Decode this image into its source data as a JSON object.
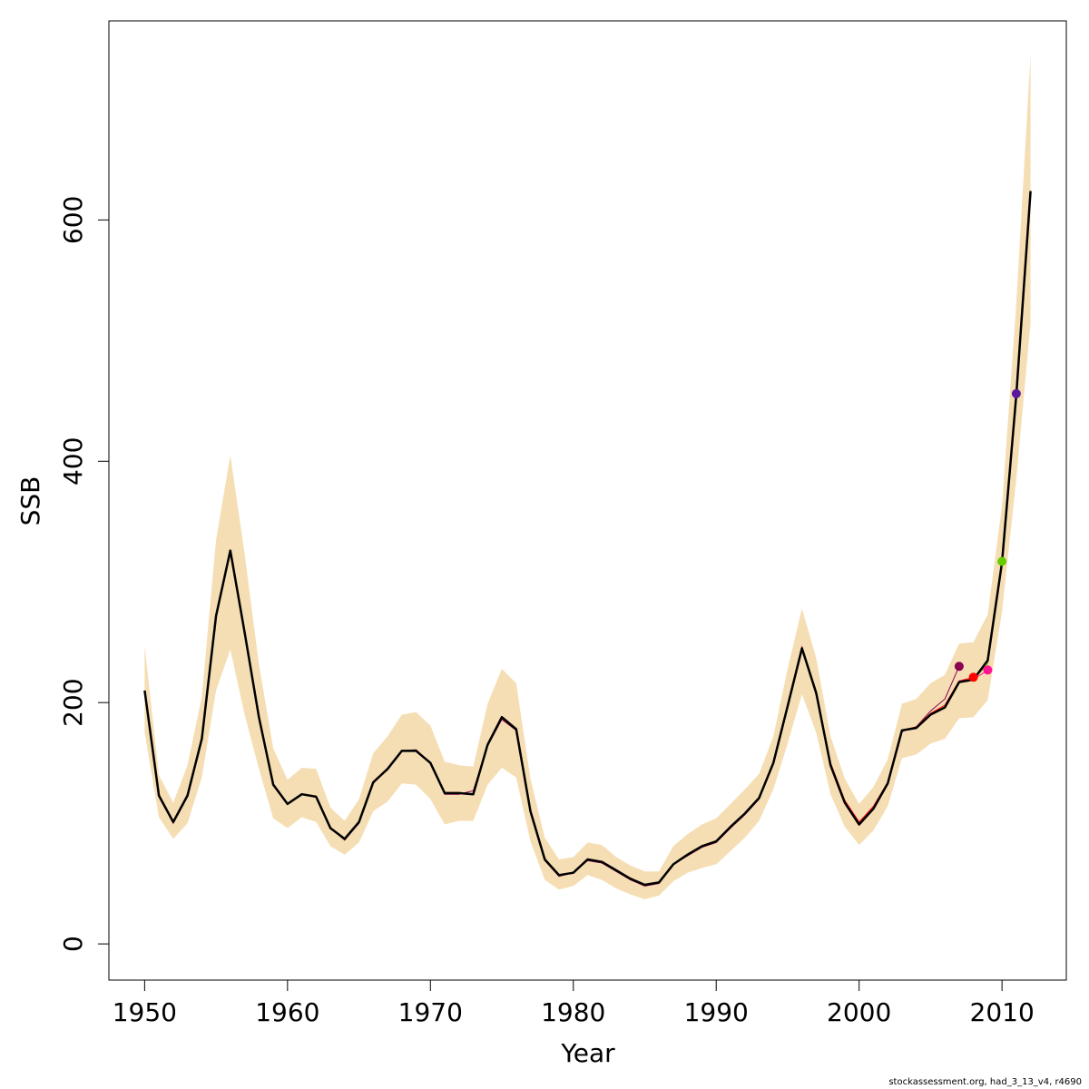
{
  "chart_data": {
    "type": "line",
    "xlabel": "Year",
    "ylabel": "SSB",
    "xlim": [
      1947.5,
      2014.5
    ],
    "ylim": [
      -30,
      765
    ],
    "x_ticks": [
      1950,
      1960,
      1970,
      1980,
      1990,
      2000,
      2010
    ],
    "y_ticks": [
      0,
      200,
      400,
      600
    ],
    "grid": false,
    "colors": {
      "band": "#f5deb3",
      "main": "#000000",
      "retro": [
        "#8b0050",
        "#ff0000",
        "#ff1493",
        "#66cc00",
        "#5b1a9e"
      ]
    },
    "x": [
      1950,
      1951,
      1952,
      1953,
      1954,
      1955,
      1956,
      1957,
      1958,
      1959,
      1960,
      1961,
      1962,
      1963,
      1964,
      1965,
      1966,
      1967,
      1968,
      1969,
      1970,
      1971,
      1972,
      1973,
      1974,
      1975,
      1976,
      1977,
      1978,
      1979,
      1980,
      1981,
      1982,
      1983,
      1984,
      1985,
      1986,
      1987,
      1988,
      1989,
      1990,
      1991,
      1992,
      1993,
      1994,
      1995,
      1996,
      1997,
      1998,
      1999,
      2000,
      2001,
      2002,
      2003,
      2004,
      2005,
      2006,
      2007,
      2008,
      2009,
      2010,
      2011,
      2012
    ],
    "series": [
      {
        "role": "estimate",
        "values": [
          210,
          123,
          101,
          123,
          170,
          272,
          326,
          258,
          188,
          132,
          116,
          124,
          122,
          96,
          87,
          101,
          134,
          145,
          160,
          160,
          150,
          125,
          125,
          124,
          165,
          188,
          178,
          110,
          70,
          57,
          59,
          70,
          68,
          61,
          54,
          49,
          51,
          66,
          74,
          81,
          85,
          97,
          108,
          121,
          150,
          197,
          245,
          208,
          148,
          117,
          99,
          112,
          133,
          177,
          179,
          190,
          196,
          217,
          219,
          235,
          316,
          455,
          624
        ]
      },
      {
        "role": "lower",
        "values": [
          175,
          105,
          87,
          100,
          138,
          210,
          244,
          190,
          145,
          104,
          96,
          105,
          101,
          81,
          74,
          84,
          110,
          118,
          133,
          132,
          120,
          99,
          102,
          102,
          132,
          146,
          138,
          85,
          53,
          45,
          48,
          57,
          53,
          46,
          41,
          37,
          40,
          52,
          59,
          63,
          66,
          77,
          88,
          102,
          128,
          166,
          207,
          175,
          124,
          97,
          82,
          94,
          114,
          154,
          157,
          166,
          170,
          187,
          188,
          202,
          275,
          385,
          515
        ]
      },
      {
        "role": "upper",
        "values": [
          247,
          140,
          117,
          148,
          205,
          335,
          405,
          323,
          232,
          162,
          136,
          146,
          145,
          113,
          102,
          120,
          158,
          172,
          190,
          192,
          181,
          151,
          148,
          147,
          199,
          228,
          216,
          137,
          88,
          70,
          72,
          84,
          82,
          72,
          65,
          60,
          60,
          81,
          91,
          99,
          104,
          116,
          128,
          141,
          172,
          228,
          278,
          237,
          172,
          137,
          116,
          130,
          153,
          199,
          203,
          216,
          223,
          249,
          250,
          273,
          363,
          531,
          737
        ]
      },
      {
        "role": "retro-2007",
        "endpoint": 2007,
        "x": [
          1950,
          1951,
          1952,
          1953,
          1954,
          1955,
          1956,
          1957,
          1958,
          1959,
          1960,
          1961,
          1962,
          1963,
          1964,
          1965,
          1966,
          1967,
          1968,
          1969,
          1970,
          1971,
          1972,
          1973,
          1974,
          1975,
          1976,
          1977,
          1978,
          1979,
          1980,
          1981,
          1982,
          1983,
          1984,
          1985,
          1986,
          1987,
          1988,
          1989,
          1990,
          1991,
          1992,
          1993,
          1994,
          1995,
          1996,
          1997,
          1998,
          1999,
          2000,
          2001,
          2002,
          2003,
          2004,
          2005,
          2006,
          2007
        ],
        "values": [
          209,
          122,
          100,
          122,
          169,
          271,
          325,
          257,
          188,
          131,
          116,
          124,
          122,
          96,
          86,
          100,
          133,
          145,
          160,
          161,
          150,
          124,
          124,
          127,
          164,
          186,
          177,
          109,
          69,
          56,
          59,
          69,
          67,
          60,
          53,
          48,
          50,
          66,
          73,
          80,
          84,
          96,
          107,
          120,
          149,
          196,
          244,
          206,
          150,
          118,
          100,
          113,
          134,
          176,
          180,
          193,
          203,
          230
        ]
      },
      {
        "role": "retro-2008",
        "endpoint": 2008,
        "x": [
          1950,
          1951,
          1952,
          1953,
          1954,
          1955,
          1956,
          1957,
          1958,
          1959,
          1960,
          1961,
          1962,
          1963,
          1964,
          1965,
          1966,
          1967,
          1968,
          1969,
          1970,
          1971,
          1972,
          1973,
          1974,
          1975,
          1976,
          1977,
          1978,
          1979,
          1980,
          1981,
          1982,
          1983,
          1984,
          1985,
          1986,
          1987,
          1988,
          1989,
          1990,
          1991,
          1992,
          1993,
          1994,
          1995,
          1996,
          1997,
          1998,
          1999,
          2000,
          2001,
          2002,
          2003,
          2004,
          2005,
          2006,
          2007,
          2008
        ],
        "values": [
          210,
          123,
          101,
          123,
          170,
          272,
          326,
          258,
          188,
          132,
          116,
          124,
          122,
          96,
          87,
          101,
          134,
          145,
          160,
          160,
          150,
          125,
          125,
          124,
          165,
          187,
          178,
          110,
          70,
          57,
          59,
          70,
          68,
          61,
          54,
          49,
          51,
          66,
          74,
          81,
          85,
          97,
          108,
          121,
          150,
          197,
          246,
          208,
          150,
          119,
          101,
          114,
          134,
          177,
          180,
          191,
          198,
          218,
          221
        ]
      },
      {
        "role": "retro-2009",
        "endpoint": 2009,
        "x": [
          1950,
          1951,
          1952,
          1953,
          1954,
          1955,
          1956,
          1957,
          1958,
          1959,
          1960,
          1961,
          1962,
          1963,
          1964,
          1965,
          1966,
          1967,
          1968,
          1969,
          1970,
          1971,
          1972,
          1973,
          1974,
          1975,
          1976,
          1977,
          1978,
          1979,
          1980,
          1981,
          1982,
          1983,
          1984,
          1985,
          1986,
          1987,
          1988,
          1989,
          1990,
          1991,
          1992,
          1993,
          1994,
          1995,
          1996,
          1997,
          1998,
          1999,
          2000,
          2001,
          2002,
          2003,
          2004,
          2005,
          2006,
          2007,
          2008,
          2009
        ],
        "values": [
          210,
          123,
          101,
          123,
          170,
          272,
          326,
          258,
          188,
          132,
          116,
          124,
          122,
          96,
          87,
          101,
          134,
          145,
          160,
          160,
          150,
          125,
          125,
          124,
          165,
          188,
          178,
          110,
          70,
          57,
          59,
          70,
          68,
          61,
          54,
          49,
          51,
          66,
          74,
          81,
          85,
          97,
          108,
          121,
          150,
          197,
          246,
          208,
          149,
          118,
          100,
          113,
          133,
          177,
          179,
          190,
          196,
          218,
          219,
          227
        ]
      },
      {
        "role": "retro-2010",
        "endpoint": 2010,
        "x": [
          2007,
          2008,
          2009,
          2010
        ],
        "values": [
          217,
          219,
          232,
          317
        ]
      },
      {
        "role": "retro-2011",
        "endpoint": 2011,
        "x": [
          2008,
          2009,
          2010,
          2011
        ],
        "values": [
          219,
          235,
          316,
          456
        ]
      }
    ]
  },
  "footnote": "stockassessment.org, had_3_13_v4, r4690"
}
